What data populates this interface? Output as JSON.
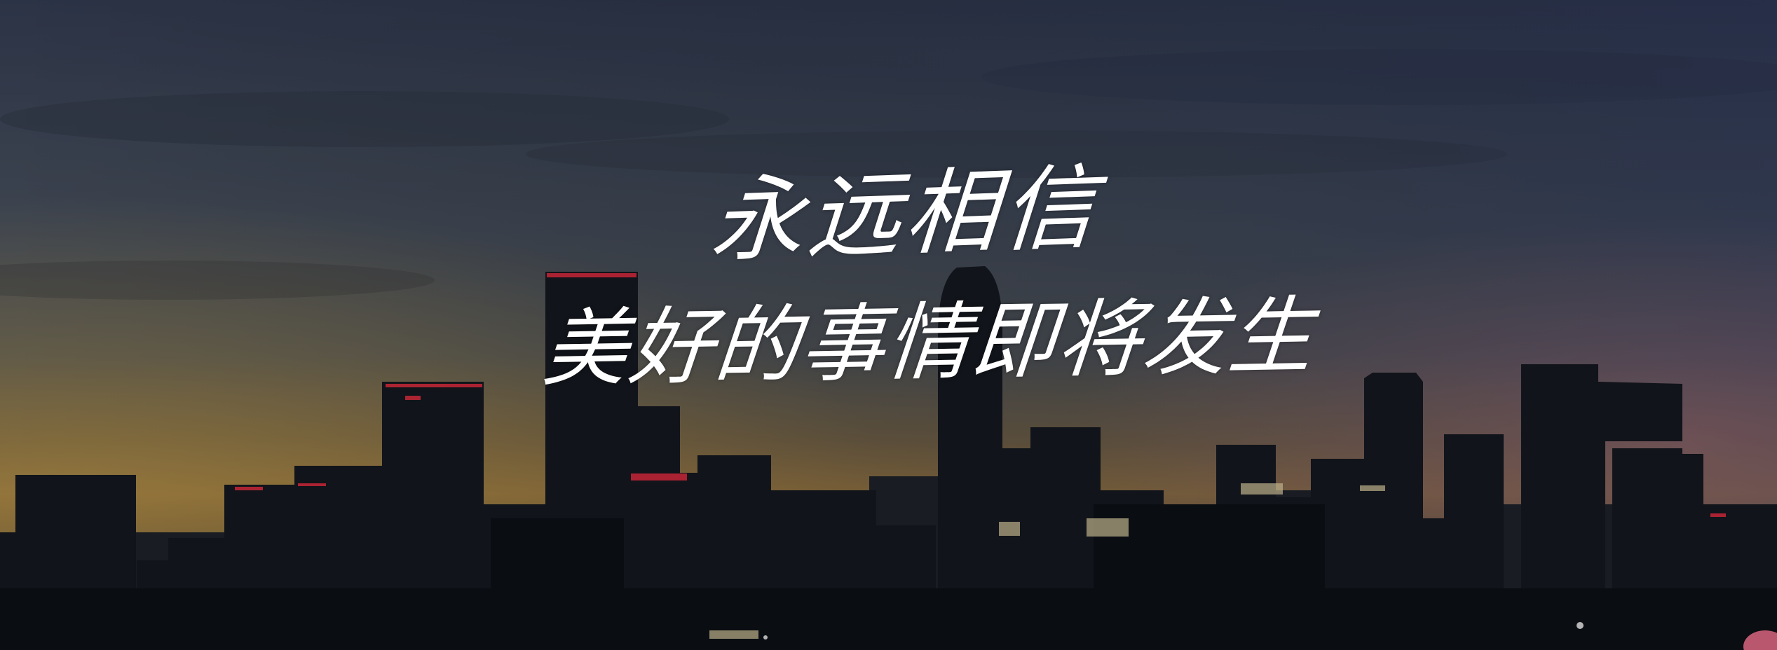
{
  "headline": {
    "line1": "永远相信",
    "line2": "美好的事情即将发生"
  },
  "colors": {
    "sky_top": "#3f4a5e",
    "sky_mid": "#5a6068",
    "horizon_glow": "#c9a35a",
    "building_shadow": "#141820",
    "text": "#ffffff",
    "red_lights": "#ff3346",
    "corner_badge": "#d8657f"
  }
}
